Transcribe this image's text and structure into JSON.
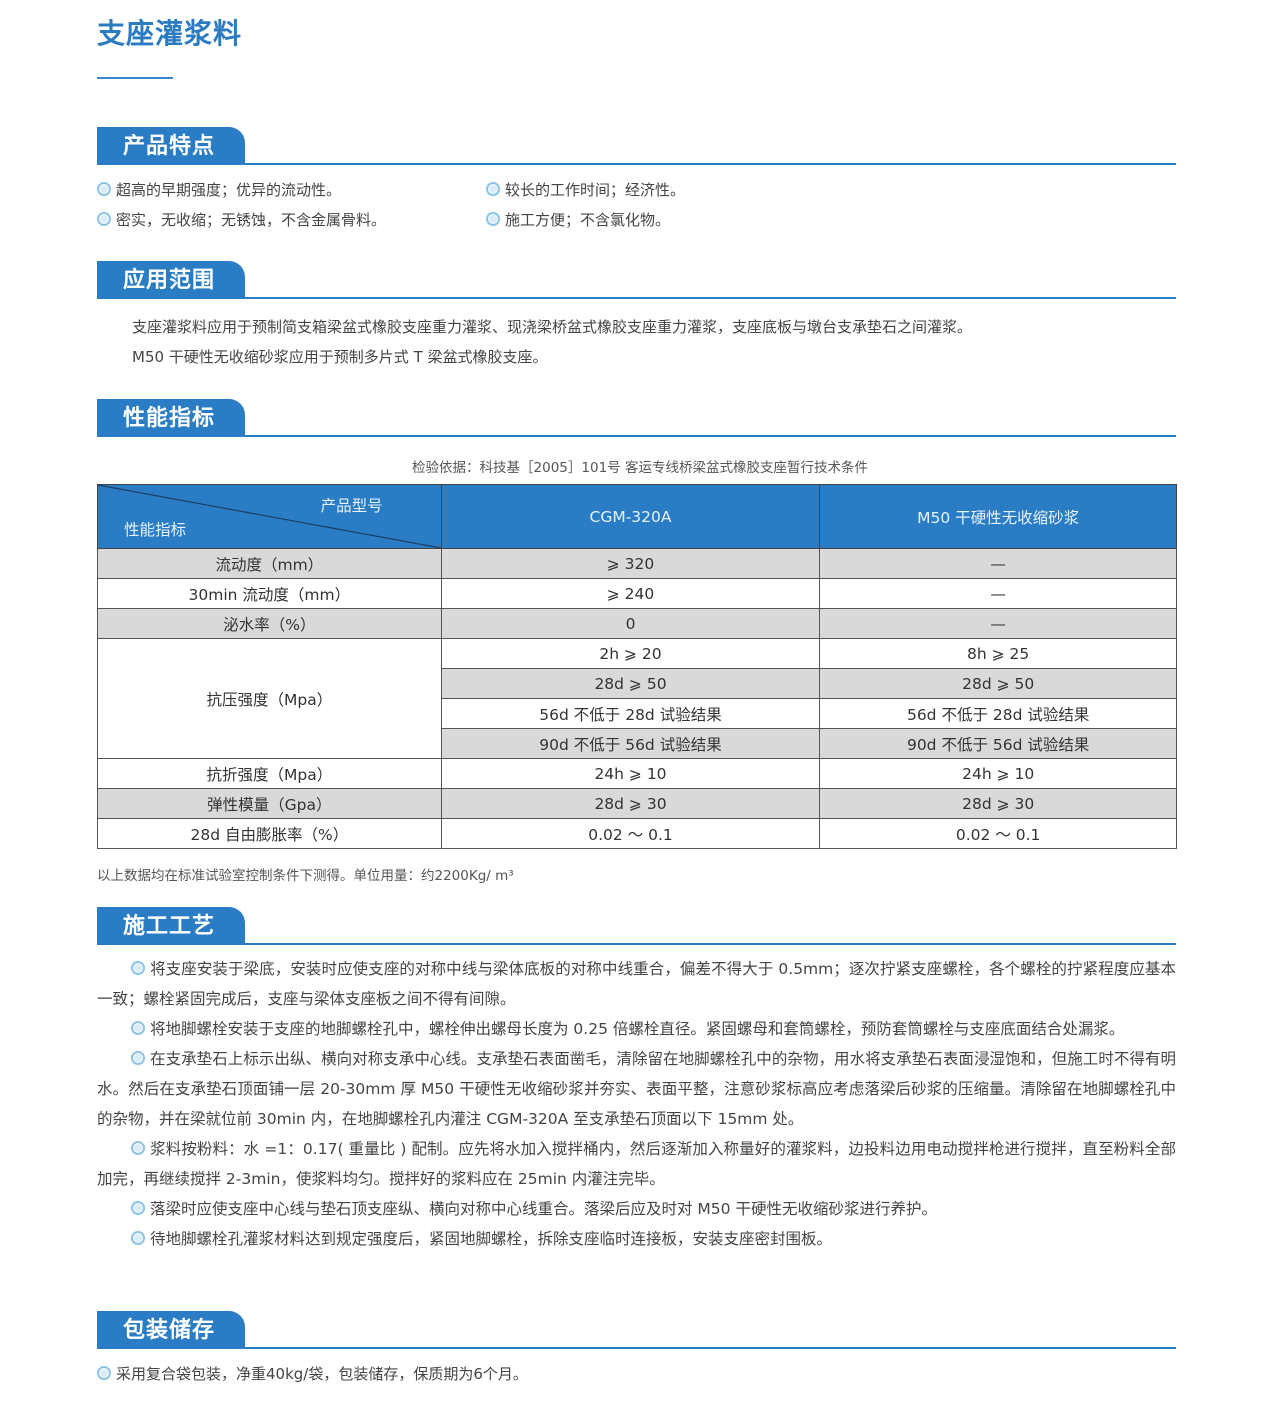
{
  "title": "支座灌浆料",
  "sections": {
    "features": {
      "heading": "产品特点",
      "items": [
        "超高的早期强度；优异的流动性。",
        "较长的工作时间；经济性。",
        "密实，无收缩；无锈蚀，不含金属骨料。",
        "施工方便；不含氯化物。"
      ]
    },
    "scope": {
      "heading": "应用范围",
      "lines": [
        "支座灌浆料应用于预制简支箱梁盆式橡胶支座重力灌浆、现浇梁桥盆式橡胶支座重力灌浆，支座底板与墩台支承垫石之间灌浆。",
        "M50 干硬性无收缩砂浆应用于预制多片式 T 梁盆式橡胶支座。"
      ]
    },
    "performance": {
      "heading": "性能指标",
      "caption": "检验依据：科技基［2005］101号 客运专线桥梁盆式橡胶支座暂行技术条件",
      "table": {
        "corner_top": "产品型号",
        "corner_bottom": "性能指标",
        "columns": [
          "CGM-320A",
          "M50 干硬性无收缩砂浆"
        ],
        "rows": [
          {
            "label": "流动度（mm）",
            "a": "⩾ 320",
            "b": "—"
          },
          {
            "label": "30min 流动度（mm）",
            "a": "⩾ 240",
            "b": "—"
          },
          {
            "label": "泌水率（%）",
            "a": "0",
            "b": "—"
          },
          {
            "label": "抗压强度（Mpa）",
            "sub": [
              {
                "a": "2h ⩾ 20",
                "b": "8h ⩾ 25"
              },
              {
                "a": "28d ⩾ 50",
                "b": "28d ⩾ 50"
              },
              {
                "a": "56d 不低于 28d 试验结果",
                "b": "56d 不低于 28d 试验结果"
              },
              {
                "a": "90d 不低于 56d 试验结果",
                "b": "90d 不低于 56d 试验结果"
              }
            ]
          },
          {
            "label": "抗折强度（Mpa）",
            "a": "24h ⩾ 10",
            "b": "24h ⩾ 10"
          },
          {
            "label": "弹性模量（Gpa）",
            "a": "28d ⩾ 30",
            "b": "28d ⩾ 30"
          },
          {
            "label": "28d 自由膨胀率（%）",
            "a": "0.02 ～ 0.1",
            "b": "0.02 ～ 0.1"
          }
        ]
      },
      "note": "以上数据均在标准试验室控制条件下测得。单位用量：约2200Kg/ m³"
    },
    "construction": {
      "heading": "施工工艺",
      "paragraphs": [
        "将支座安装于梁底，安装时应使支座的对称中线与梁体底板的对称中线重合，偏差不得大于 0.5mm；逐次拧紧支座螺栓，各个螺栓的拧紧程度应基本一致；螺栓紧固完成后，支座与梁体支座板之间不得有间隙。",
        "将地脚螺栓安装于支座的地脚螺栓孔中，螺栓伸出螺母长度为 0.25 倍螺栓直径。紧固螺母和套筒螺栓，预防套筒螺栓与支座底面结合处漏浆。",
        "在支承垫石上标示出纵、横向对称支承中心线。支承垫石表面凿毛，清除留在地脚螺栓孔中的杂物，用水将支承垫石表面浸湿饱和，但施工时不得有明水。然后在支承垫石顶面铺一层 20-30mm 厚 M50 干硬性无收缩砂浆并夯实、表面平整，注意砂浆标高应考虑落梁后砂浆的压缩量。清除留在地脚螺栓孔中的杂物，并在梁就位前 30min 内，在地脚螺栓孔内灌注 CGM-320A 至支承垫石顶面以下 15mm 处。",
        "浆料按粉料：水 =1：0.17( 重量比 ) 配制。应先将水加入搅拌桶内，然后逐渐加入称量好的灌浆料，边投料边用电动搅拌枪进行搅拌，直至粉料全部加完，再继续搅拌 2-3min，使浆料均匀。搅拌好的浆料应在 25min 内灌注完毕。",
        "落梁时应使支座中心线与垫石顶支座纵、横向对称中心线重合。落梁后应及时对 M50 干硬性无收缩砂浆进行养护。",
        "待地脚螺栓孔灌浆材料达到规定强度后，紧固地脚螺栓，拆除支座临时连接板，安装支座密封围板。"
      ]
    },
    "packaging": {
      "heading": "包装储存",
      "items": [
        "采用复合袋包装，净重40kg/袋，包装储存，保质期为6个月。"
      ]
    }
  },
  "colors": {
    "accent": "#2a7cc4",
    "row_shade": "#d9d9d9",
    "bullet_ring": "#8cc3e6"
  },
  "icons": {
    "bullet": "double-circle-bullet-icon"
  }
}
